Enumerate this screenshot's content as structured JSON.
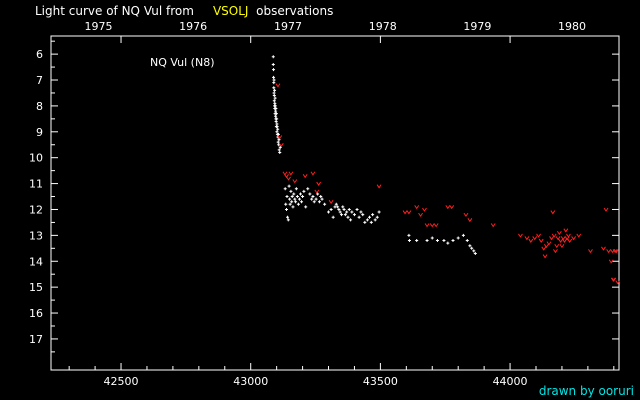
{
  "title": {
    "prefix": "Light curve of NQ Vul from",
    "source": "VSOLJ",
    "suffix": "observations"
  },
  "credit": "drawn by ooruri",
  "colors": {
    "background": "#000000",
    "axis": "#ffffff",
    "positive": "#ffffff",
    "upper_limit": "#ff2020",
    "source_highlight": "#ffff00",
    "credit": "#00e5e5"
  },
  "chart_data": {
    "type": "scatter",
    "label": "NQ Vul (N8)",
    "x_axis": {
      "ticks": [
        42500,
        43000,
        43500,
        44000
      ],
      "range": [
        42230,
        44420
      ]
    },
    "top_axis": {
      "ticks": [
        "1975",
        "1976",
        "1977",
        "1978",
        "1979",
        "1980"
      ],
      "positions": [
        42413,
        42778,
        43144,
        43509,
        43874,
        44239
      ]
    },
    "y_axis": {
      "ticks": [
        6,
        7,
        8,
        9,
        10,
        11,
        12,
        13,
        14,
        15,
        16,
        17
      ],
      "range": [
        5.3,
        18.2
      ],
      "inverted": true
    },
    "grid": false,
    "legend": "none",
    "series": [
      {
        "kind": "observations",
        "points": [
          [
            43087,
            6.1
          ],
          [
            43087,
            6.4
          ],
          [
            43088,
            6.6
          ],
          [
            43088,
            6.9
          ],
          [
            43089,
            7.1
          ],
          [
            43089,
            7.3
          ],
          [
            43090,
            7.5
          ],
          [
            43090,
            7.0
          ],
          [
            43091,
            7.8
          ],
          [
            43091,
            7.6
          ],
          [
            43092,
            8.0
          ],
          [
            43092,
            7.4
          ],
          [
            43093,
            8.1
          ],
          [
            43093,
            7.9
          ],
          [
            43094,
            8.3
          ],
          [
            43094,
            7.7
          ],
          [
            43095,
            8.0
          ],
          [
            43096,
            8.4
          ],
          [
            43096,
            8.2
          ],
          [
            43097,
            8.5
          ],
          [
            43097,
            8.1
          ],
          [
            43098,
            8.6
          ],
          [
            43099,
            8.3
          ],
          [
            43099,
            8.8
          ],
          [
            43100,
            8.5
          ],
          [
            43101,
            8.7
          ],
          [
            43101,
            9.0
          ],
          [
            43102,
            8.8
          ],
          [
            43103,
            9.1
          ],
          [
            43104,
            8.9
          ],
          [
            43105,
            9.2
          ],
          [
            43106,
            9.4
          ],
          [
            43107,
            9.1
          ],
          [
            43108,
            9.5
          ],
          [
            43109,
            9.3
          ],
          [
            43110,
            9.7
          ],
          [
            43112,
            9.8
          ],
          [
            43114,
            9.6
          ],
          [
            43133,
            11.2
          ],
          [
            43135,
            11.8
          ],
          [
            43138,
            12.0
          ],
          [
            43140,
            11.5
          ],
          [
            43142,
            12.3
          ],
          [
            43145,
            12.4
          ],
          [
            43148,
            11.1
          ],
          [
            43150,
            11.6
          ],
          [
            43152,
            11.8
          ],
          [
            43155,
            11.3
          ],
          [
            43158,
            11.7
          ],
          [
            43160,
            11.5
          ],
          [
            43163,
            11.9
          ],
          [
            43166,
            11.4
          ],
          [
            43170,
            11.6
          ],
          [
            43173,
            11.7
          ],
          [
            43176,
            11.2
          ],
          [
            43180,
            11.5
          ],
          [
            43184,
            11.8
          ],
          [
            43188,
            11.6
          ],
          [
            43192,
            11.4
          ],
          [
            43196,
            11.7
          ],
          [
            43200,
            11.5
          ],
          [
            43205,
            11.3
          ],
          [
            43212,
            11.9
          ],
          [
            43220,
            11.2
          ],
          [
            43228,
            11.4
          ],
          [
            43235,
            11.6
          ],
          [
            43240,
            11.5
          ],
          [
            43245,
            11.7
          ],
          [
            43252,
            11.6
          ],
          [
            43258,
            11.4
          ],
          [
            43265,
            11.7
          ],
          [
            43270,
            11.5
          ],
          [
            43275,
            11.6
          ],
          [
            43285,
            11.8
          ],
          [
            43300,
            12.1
          ],
          [
            43310,
            12.0
          ],
          [
            43318,
            12.3
          ],
          [
            43325,
            11.9
          ],
          [
            43330,
            11.8
          ],
          [
            43335,
            11.9
          ],
          [
            43340,
            12.0
          ],
          [
            43345,
            12.1
          ],
          [
            43350,
            12.2
          ],
          [
            43355,
            11.9
          ],
          [
            43360,
            12.0
          ],
          [
            43365,
            12.2
          ],
          [
            43370,
            12.1
          ],
          [
            43375,
            12.3
          ],
          [
            43380,
            12.0
          ],
          [
            43385,
            12.4
          ],
          [
            43390,
            12.1
          ],
          [
            43400,
            12.2
          ],
          [
            43410,
            12.0
          ],
          [
            43418,
            12.3
          ],
          [
            43425,
            12.1
          ],
          [
            43432,
            12.2
          ],
          [
            43440,
            12.5
          ],
          [
            43450,
            12.4
          ],
          [
            43458,
            12.3
          ],
          [
            43465,
            12.5
          ],
          [
            43470,
            12.2
          ],
          [
            43480,
            12.4
          ],
          [
            43488,
            12.3
          ],
          [
            43495,
            12.1
          ],
          [
            43610,
            13.0
          ],
          [
            43612,
            13.2
          ],
          [
            43640,
            13.2
          ],
          [
            43680,
            13.2
          ],
          [
            43700,
            13.1
          ],
          [
            43720,
            13.2
          ],
          [
            43745,
            13.2
          ],
          [
            43760,
            13.3
          ],
          [
            43780,
            13.2
          ],
          [
            43800,
            13.1
          ],
          [
            43820,
            13.0
          ],
          [
            43835,
            13.2
          ],
          [
            43845,
            13.4
          ],
          [
            43852,
            13.5
          ],
          [
            43860,
            13.6
          ],
          [
            43866,
            13.7
          ]
        ]
      },
      {
        "kind": "fainter-than",
        "points": [
          [
            43105,
            7.2
          ],
          [
            43112,
            9.2
          ],
          [
            43118,
            9.5
          ],
          [
            43132,
            10.6
          ],
          [
            43138,
            10.7
          ],
          [
            43146,
            10.8
          ],
          [
            43155,
            10.6
          ],
          [
            43170,
            10.9
          ],
          [
            43210,
            10.7
          ],
          [
            43240,
            10.6
          ],
          [
            43255,
            11.3
          ],
          [
            43262,
            11.0
          ],
          [
            43310,
            11.7
          ],
          [
            43495,
            11.1
          ],
          [
            43595,
            12.1
          ],
          [
            43610,
            12.1
          ],
          [
            43640,
            11.9
          ],
          [
            43655,
            12.2
          ],
          [
            43670,
            12.0
          ],
          [
            43680,
            12.6
          ],
          [
            43700,
            12.6
          ],
          [
            43715,
            12.6
          ],
          [
            43760,
            11.9
          ],
          [
            43775,
            11.9
          ],
          [
            43830,
            12.2
          ],
          [
            43845,
            12.4
          ],
          [
            43935,
            12.6
          ],
          [
            44040,
            13.0
          ],
          [
            44065,
            13.1
          ],
          [
            44080,
            13.2
          ],
          [
            44095,
            13.1
          ],
          [
            44110,
            13.0
          ],
          [
            44120,
            13.2
          ],
          [
            44130,
            13.5
          ],
          [
            44135,
            13.8
          ],
          [
            44140,
            13.4
          ],
          [
            44150,
            13.3
          ],
          [
            44160,
            13.1
          ],
          [
            44165,
            12.1
          ],
          [
            44170,
            13.0
          ],
          [
            44175,
            13.6
          ],
          [
            44180,
            13.4
          ],
          [
            44185,
            13.1
          ],
          [
            44190,
            12.9
          ],
          [
            44195,
            13.2
          ],
          [
            44200,
            13.4
          ],
          [
            44205,
            13.1
          ],
          [
            44210,
            13.2
          ],
          [
            44215,
            12.8
          ],
          [
            44220,
            13.1
          ],
          [
            44225,
            13.0
          ],
          [
            44230,
            13.2
          ],
          [
            44245,
            13.1
          ],
          [
            44265,
            13.0
          ],
          [
            44310,
            13.6
          ],
          [
            44360,
            13.5
          ],
          [
            44370,
            12.0
          ],
          [
            44380,
            13.6
          ],
          [
            44390,
            14.0
          ],
          [
            44395,
            13.6
          ],
          [
            44398,
            14.7
          ],
          [
            44400,
            14.7
          ],
          [
            44405,
            13.6
          ],
          [
            44410,
            13.6
          ],
          [
            44415,
            14.8
          ]
        ]
      }
    ]
  }
}
